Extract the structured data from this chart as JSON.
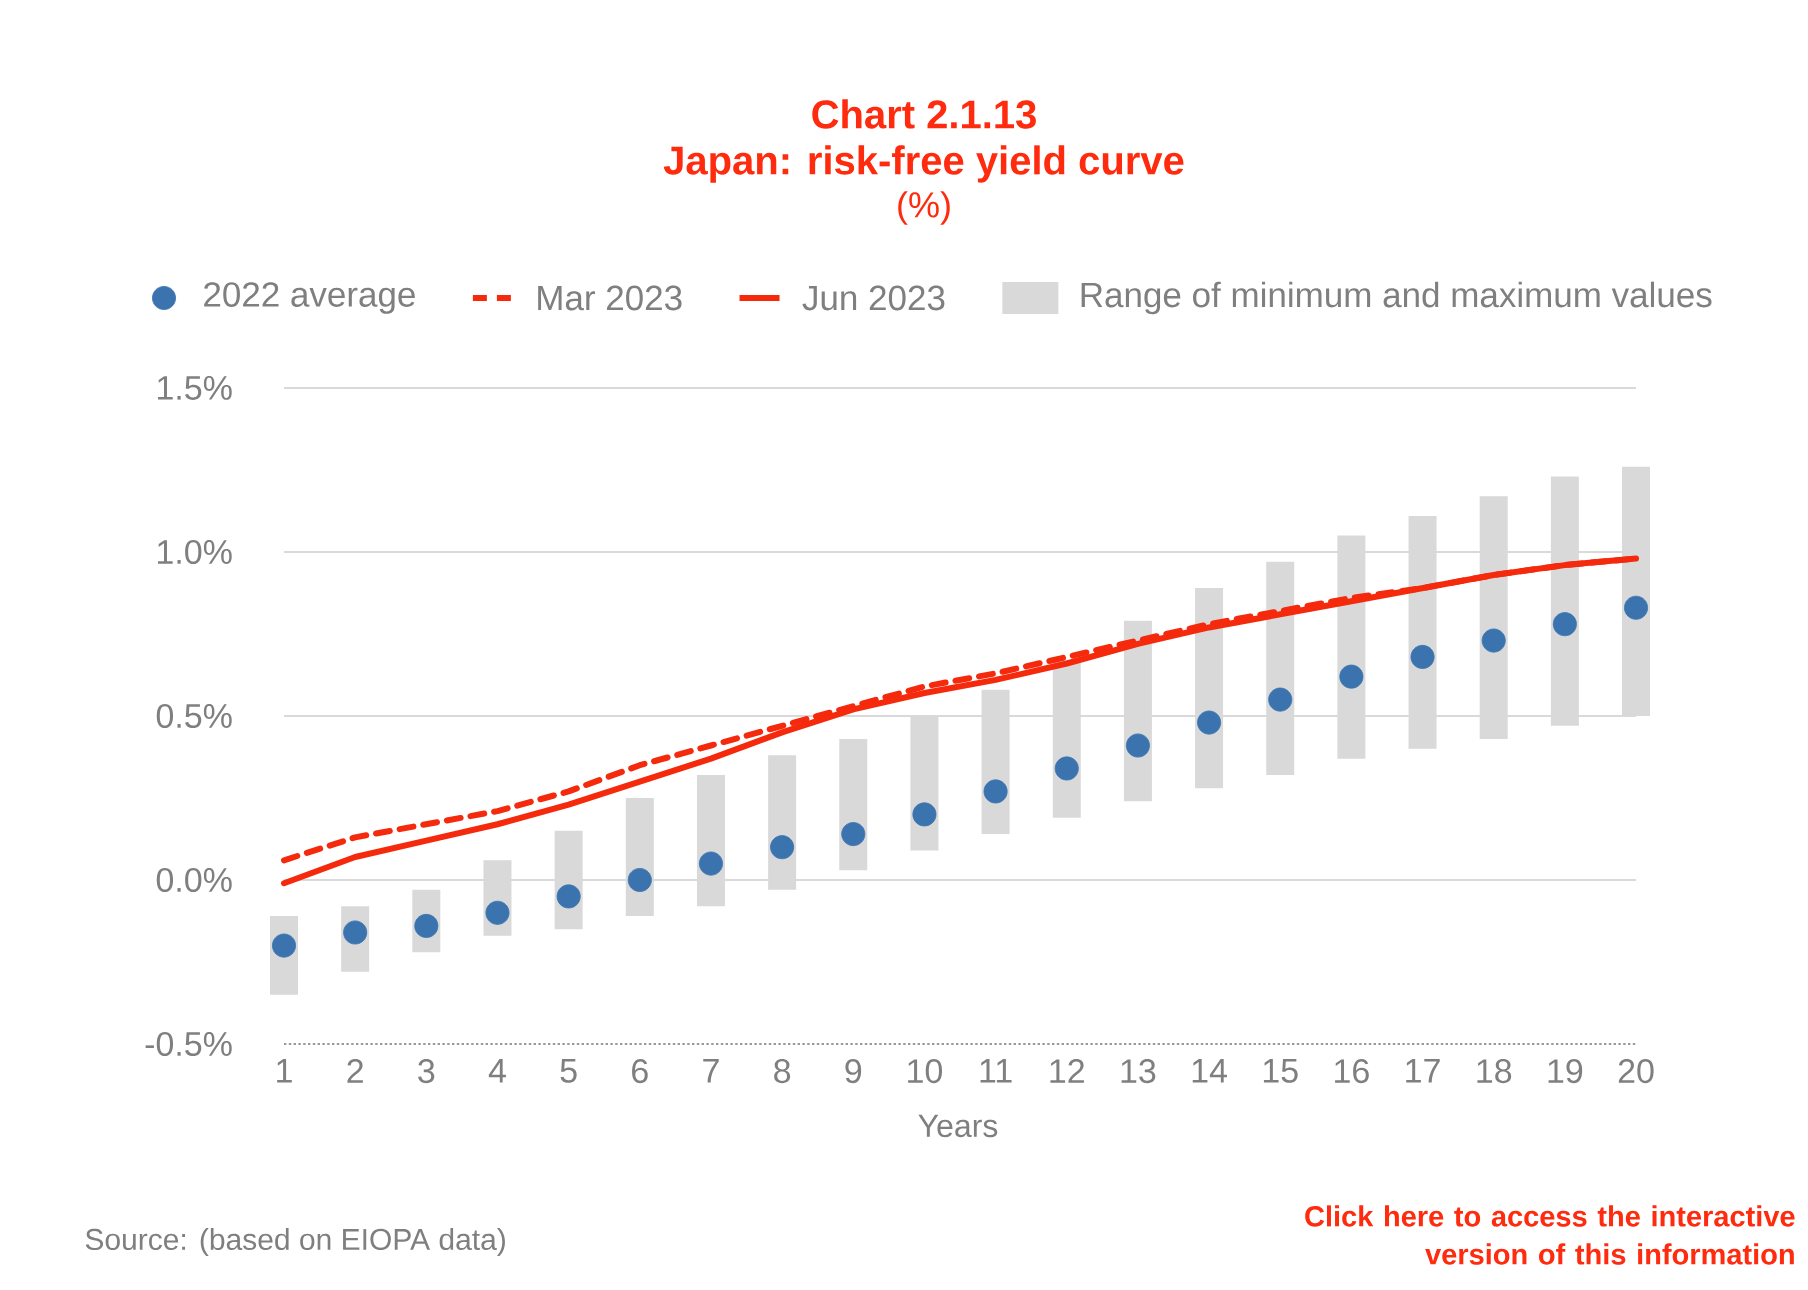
{
  "chart_data": {
    "type": "line",
    "title": "Chart 2.1.13",
    "subtitle": "Japan: risk-free yield curve",
    "annotations": [
      "(%)",
      "Source: (based on EIOPA data)",
      "Click here to access the interactive version of this information"
    ],
    "xlabel": "Years",
    "categories": [
      "1",
      "2",
      "3",
      "4",
      "5",
      "6",
      "7",
      "8",
      "9",
      "10",
      "11",
      "12",
      "13",
      "14",
      "15",
      "16",
      "17",
      "18",
      "19",
      "20"
    ],
    "ylim": [
      -0.5,
      1.5
    ],
    "yticks": [
      {
        "value": -0.5,
        "label": "-0.5%"
      },
      {
        "value": 0,
        "label": "0.0%"
      },
      {
        "value": 0.5,
        "label": "0.5%"
      },
      {
        "value": 1.0,
        "label": "1.0%"
      },
      {
        "value": 1.5,
        "label": "1.5%"
      }
    ],
    "grid": "y",
    "legend": "top",
    "series": [
      {
        "name": "2022 average",
        "type": "scatter",
        "marker": "circle",
        "color": "#3b73af",
        "values": [
          -0.2,
          -0.16,
          -0.14,
          -0.1,
          -0.05,
          0.0,
          0.05,
          0.1,
          0.14,
          0.2,
          0.27,
          0.34,
          0.41,
          0.48,
          0.55,
          0.62,
          0.68,
          0.73,
          0.78,
          0.83
        ]
      },
      {
        "name": "Mar 2023",
        "line_style": "dashed",
        "color": "#f5290c",
        "values": [
          0.06,
          0.13,
          0.17,
          0.21,
          0.27,
          0.35,
          0.41,
          0.47,
          0.53,
          0.59,
          0.63,
          0.68,
          0.73,
          0.78,
          0.82,
          0.86,
          0.89,
          0.93,
          0.96,
          0.98
        ]
      },
      {
        "name": "Jun 2023",
        "line_style": "solid",
        "color": "#f5290c",
        "values": [
          -0.01,
          0.07,
          0.12,
          0.17,
          0.23,
          0.3,
          0.37,
          0.45,
          0.52,
          0.57,
          0.61,
          0.66,
          0.72,
          0.77,
          0.81,
          0.85,
          0.89,
          0.93,
          0.96,
          0.98
        ]
      },
      {
        "name": "Range of minimum and maximum values",
        "type": "bar",
        "color": "#d9d9d9",
        "base": [
          -0.35,
          -0.28,
          -0.22,
          -0.17,
          -0.15,
          -0.11,
          -0.08,
          -0.03,
          0.03,
          0.09,
          0.14,
          0.19,
          0.24,
          0.28,
          0.32,
          0.37,
          0.4,
          0.43,
          0.47,
          0.5
        ],
        "values": [
          0.24,
          0.2,
          0.19,
          0.23,
          0.3,
          0.36,
          0.4,
          0.41,
          0.4,
          0.41,
          0.44,
          0.48,
          0.55,
          0.61,
          0.65,
          0.68,
          0.71,
          0.74,
          0.76,
          0.76
        ]
      }
    ]
  }
}
